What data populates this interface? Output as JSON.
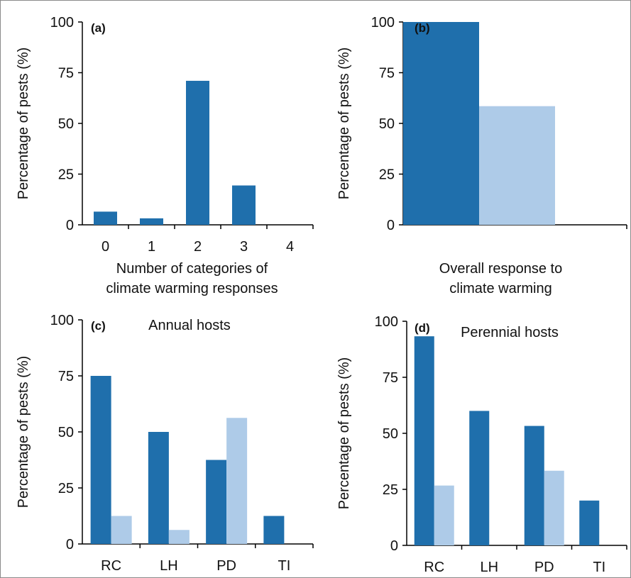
{
  "colors": {
    "dark": "#1f6fac",
    "light": "#aecbe8"
  },
  "chart_data": [
    {
      "panel": "(a)",
      "type": "bar",
      "title": "",
      "xlabel": [
        "Number of categories of",
        "climate warming responses"
      ],
      "ylabel": "Percentage of pests (%)",
      "ylim": [
        0,
        100
      ],
      "yticks": [
        "0",
        "25",
        "50",
        "75",
        "100"
      ],
      "categories": [
        "0",
        "1",
        "2",
        "3",
        "4"
      ],
      "series": [
        {
          "values": [
            6.5,
            3.2,
            71,
            19.4,
            0
          ]
        }
      ]
    },
    {
      "panel": "(b)",
      "type": "bar",
      "title": "",
      "xlabel": [
        "Overall response to",
        "climate warming"
      ],
      "ylabel": "Percentage of pests (%)",
      "ylim": [
        0,
        100
      ],
      "yticks": [
        "0",
        "25",
        "50",
        "75",
        "100"
      ],
      "categories": [
        ""
      ],
      "series": [
        {
          "values": [
            100
          ]
        },
        {
          "values": [
            58.5
          ]
        }
      ]
    },
    {
      "panel": "(c)",
      "type": "bar",
      "title": "Annual hosts",
      "xlabel": "",
      "ylabel": "Percentage of pests (%)",
      "ylim": [
        0,
        100
      ],
      "yticks": [
        "0",
        "25",
        "50",
        "75",
        "100"
      ],
      "categories": [
        "RC",
        "LH",
        "PD",
        "TI"
      ],
      "series": [
        {
          "values": [
            75,
            50,
            37.5,
            12.5
          ]
        },
        {
          "values": [
            12.5,
            6.25,
            56.25,
            0
          ]
        }
      ]
    },
    {
      "panel": "(d)",
      "type": "bar",
      "title": "Perennial hosts",
      "xlabel": "",
      "ylabel": "Percentage of pests (%)",
      "ylim": [
        0,
        100
      ],
      "yticks": [
        "0",
        "25",
        "50",
        "75",
        "100"
      ],
      "categories": [
        "RC",
        "LH",
        "PD",
        "TI"
      ],
      "series": [
        {
          "values": [
            93.3,
            60,
            53.3,
            20
          ]
        },
        {
          "values": [
            26.7,
            0,
            33.3,
            0
          ]
        }
      ]
    }
  ]
}
